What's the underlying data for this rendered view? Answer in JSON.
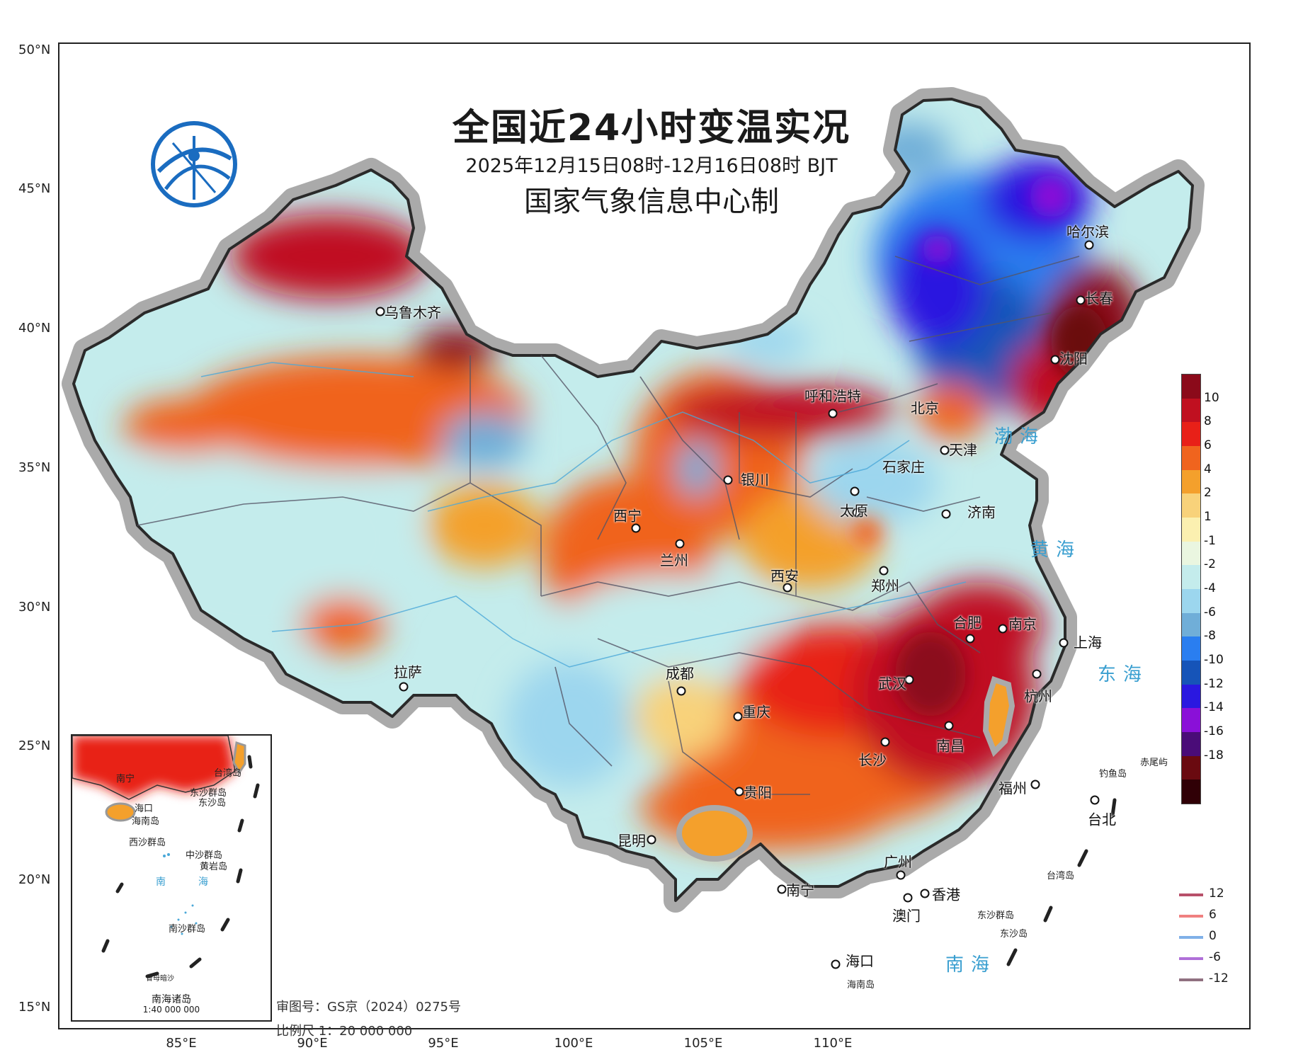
{
  "title": {
    "main": "全国近24小时变温实况",
    "period": "2025年12月15日08时-12月16日08时 BJT",
    "agency": "国家气象信息中心制"
  },
  "latitude_labels": [
    "50°N",
    "45°N",
    "40°N",
    "35°N",
    "30°N",
    "25°N",
    "20°N",
    "15°N"
  ],
  "longitude_labels": [
    "85°E",
    "90°E",
    "95°E",
    "100°E",
    "105°E",
    "110°E"
  ],
  "cities": [
    {
      "name": "乌鲁木齐"
    },
    {
      "name": "哈尔滨"
    },
    {
      "name": "长春"
    },
    {
      "name": "沈阳"
    },
    {
      "name": "呼和浩特"
    },
    {
      "name": "北京"
    },
    {
      "name": "天津"
    },
    {
      "name": "银川"
    },
    {
      "name": "石家庄"
    },
    {
      "name": "太原"
    },
    {
      "name": "济南"
    },
    {
      "name": "西宁"
    },
    {
      "name": "兰州"
    },
    {
      "name": "西安"
    },
    {
      "name": "郑州"
    },
    {
      "name": "合肥"
    },
    {
      "name": "南京"
    },
    {
      "name": "上海"
    },
    {
      "name": "拉萨"
    },
    {
      "name": "成都"
    },
    {
      "name": "武汉"
    },
    {
      "name": "杭州"
    },
    {
      "name": "重庆"
    },
    {
      "name": "南昌"
    },
    {
      "name": "长沙"
    },
    {
      "name": "福州"
    },
    {
      "name": "贵阳"
    },
    {
      "name": "台北"
    },
    {
      "name": "昆明"
    },
    {
      "name": "广州"
    },
    {
      "name": "南宁"
    },
    {
      "name": "香港"
    },
    {
      "name": "澳门"
    },
    {
      "name": "海口"
    }
  ],
  "seas": [
    "渤海",
    "黄海",
    "东海",
    "南海"
  ],
  "islands": {
    "chiweiyu": "赤尾屿",
    "diaoyudao": "钓鱼岛",
    "taiwan": "台湾岛",
    "dongsha": "东沙群岛",
    "dongshadao": "东沙岛",
    "hainan": "海南岛"
  },
  "colorbar": {
    "ticks": [
      "10",
      "8",
      "6",
      "4",
      "2",
      "1",
      "-1",
      "-2",
      "-4",
      "-6",
      "-8",
      "-10",
      "-12",
      "-14",
      "-16",
      "-18"
    ],
    "colors": [
      "#8b0a1a",
      "#c01020",
      "#e82018",
      "#f0641e",
      "#f4a02c",
      "#f8d27a",
      "#fbf0b0",
      "#eaf6e0",
      "#c4ecec",
      "#9cd6ee",
      "#70aed8",
      "#2a7ef0",
      "#1654b8",
      "#2a18e0",
      "#8a10d8",
      "#4a0c78",
      "#6a0a10",
      "#300006"
    ]
  },
  "line_legend": [
    {
      "label": "12",
      "color": "#b8506a"
    },
    {
      "label": "6",
      "color": "#f08080"
    },
    {
      "label": "0",
      "color": "#80b0e8"
    },
    {
      "label": "-6",
      "color": "#b070d8"
    },
    {
      "label": "-12",
      "color": "#907080"
    }
  ],
  "inset": {
    "title": "南海诸岛",
    "scale": "1:40 000 000",
    "labels": {
      "nanning": "南宁",
      "haikou": "海口",
      "hainan": "海南岛",
      "taiwan": "台湾岛",
      "dongsha_q": "东沙群岛",
      "dongsha": "东沙岛",
      "xisha": "西沙群岛",
      "zhongsha": "中沙群岛",
      "huangyan": "黄岩岛",
      "nan": "南",
      "hai": "海",
      "nansha": "南沙群岛",
      "zengmu": "曾母暗沙"
    }
  },
  "footer": {
    "approval": "审图号：GS京（2024）0275号",
    "scale": "比例尺  1：20 000 000"
  }
}
